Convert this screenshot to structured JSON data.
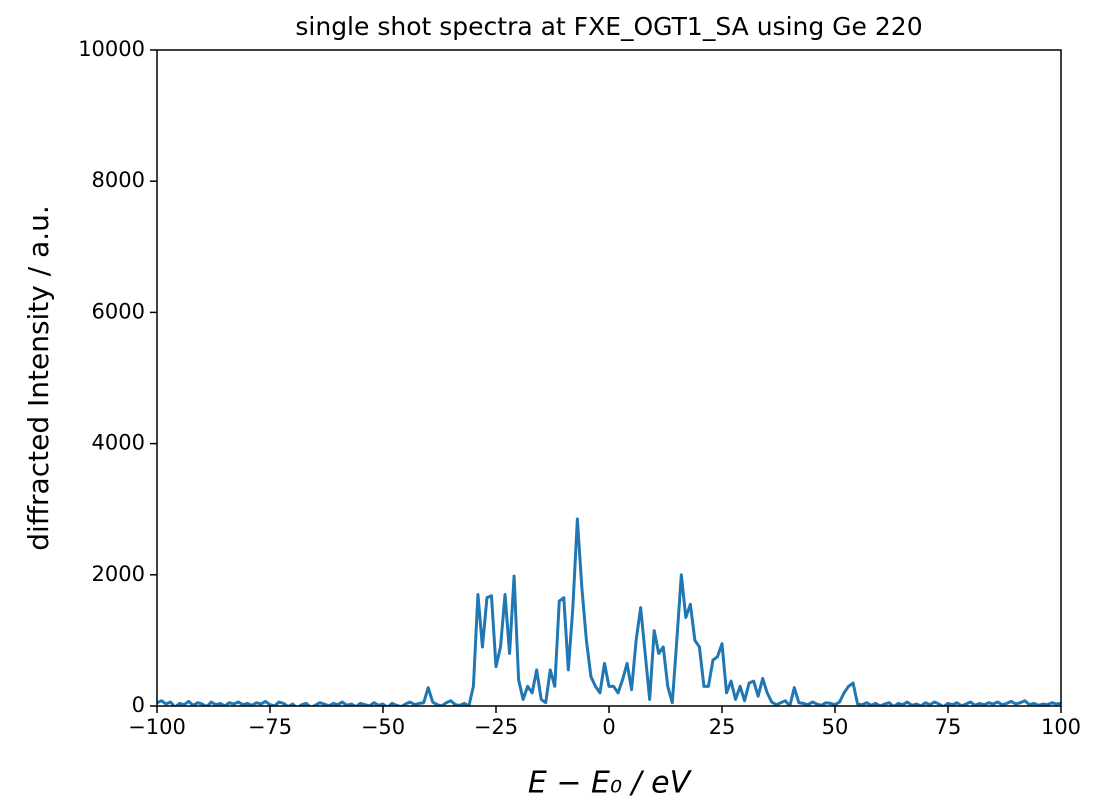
{
  "chart_data": {
    "type": "line",
    "title": "single shot spectra at FXE_OGT1_SA using Ge 220",
    "xlabel": "E − E₀ / eV",
    "ylabel": "diffracted Intensity / a.u.",
    "color": "#1f77b4",
    "x": [
      -100,
      -99,
      -98,
      -97,
      -96,
      -95,
      -94,
      -93,
      -92,
      -91,
      -90,
      -89,
      -88,
      -87,
      -86,
      -85,
      -84,
      -83,
      -82,
      -81,
      -80,
      -79,
      -78,
      -77,
      -76,
      -75,
      -74,
      -73,
      -72,
      -71,
      -70,
      -69,
      -68,
      -67,
      -66,
      -65,
      -64,
      -63,
      -62,
      -61,
      -60,
      -59,
      -58,
      -57,
      -56,
      -55,
      -54,
      -53,
      -52,
      -51,
      -50,
      -49,
      -48,
      -47,
      -46,
      -45,
      -44,
      -43,
      -42,
      -41,
      -40,
      -39,
      -38,
      -37,
      -36,
      -35,
      -34,
      -33,
      -32,
      -31,
      -30,
      -29,
      -28,
      -27,
      -26,
      -25,
      -24,
      -23,
      -22,
      -21,
      -20,
      -19,
      -18,
      -17,
      -16,
      -15,
      -14,
      -13,
      -12,
      -11,
      -10,
      -9,
      -8,
      -7,
      -6,
      -5,
      -4,
      -3,
      -2,
      -1,
      0,
      1,
      2,
      3,
      4,
      5,
      6,
      7,
      8,
      9,
      10,
      11,
      12,
      13,
      14,
      15,
      16,
      17,
      18,
      19,
      20,
      21,
      22,
      23,
      24,
      25,
      26,
      27,
      28,
      29,
      30,
      31,
      32,
      33,
      34,
      35,
      36,
      37,
      38,
      39,
      40,
      41,
      42,
      43,
      44,
      45,
      46,
      47,
      48,
      49,
      50,
      51,
      52,
      53,
      54,
      55,
      56,
      57,
      58,
      59,
      60,
      61,
      62,
      63,
      64,
      65,
      66,
      67,
      68,
      69,
      70,
      71,
      72,
      73,
      74,
      75,
      76,
      77,
      78,
      79,
      80,
      81,
      82,
      83,
      84,
      85,
      86,
      87,
      88,
      89,
      90,
      91,
      92,
      93,
      94,
      95,
      96,
      97,
      98,
      99,
      100
    ],
    "values": [
      50,
      80,
      30,
      60,
      -20,
      40,
      20,
      70,
      10,
      50,
      30,
      -10,
      60,
      20,
      40,
      0,
      50,
      30,
      60,
      20,
      40,
      10,
      50,
      30,
      70,
      20,
      0,
      60,
      40,
      -10,
      30,
      -30,
      20,
      40,
      -20,
      10,
      50,
      30,
      0,
      40,
      20,
      60,
      10,
      30,
      -10,
      40,
      20,
      0,
      50,
      10,
      30,
      -20,
      40,
      10,
      -10,
      30,
      60,
      20,
      40,
      50,
      280,
      60,
      20,
      0,
      50,
      80,
      20,
      10,
      40,
      0,
      300,
      1700,
      900,
      1650,
      1680,
      600,
      900,
      1700,
      800,
      1980,
      400,
      100,
      300,
      200,
      550,
      100,
      50,
      550,
      300,
      1600,
      1650,
      550,
      1500,
      2850,
      1800,
      1000,
      450,
      300,
      200,
      650,
      300,
      300,
      200,
      400,
      650,
      250,
      1000,
      1500,
      800,
      100,
      1150,
      800,
      900,
      300,
      50,
      1000,
      2000,
      1350,
      1550,
      1000,
      900,
      300,
      300,
      700,
      750,
      950,
      200,
      380,
      100,
      300,
      80,
      350,
      380,
      150,
      420,
      200,
      60,
      20,
      50,
      80,
      0,
      280,
      50,
      40,
      20,
      60,
      30,
      10,
      50,
      40,
      20,
      60,
      200,
      300,
      350,
      30,
      20,
      50,
      10,
      40,
      0,
      30,
      50,
      -10,
      40,
      20,
      60,
      10,
      30,
      0,
      50,
      20,
      60,
      30,
      -10,
      40,
      20,
      50,
      0,
      30,
      60,
      10,
      40,
      20,
      50,
      30,
      60,
      20,
      40,
      70,
      30,
      50,
      80,
      20,
      40,
      10,
      30,
      20,
      50,
      30,
      40
    ],
    "xlim": [
      -100,
      100
    ],
    "xticks": [
      {
        "value": -100,
        "label": "−100"
      },
      {
        "value": -75,
        "label": "−75"
      },
      {
        "value": -50,
        "label": "−50"
      },
      {
        "value": -25,
        "label": "−25"
      },
      0,
      25,
      50,
      75,
      100
    ],
    "ylim": [
      0,
      10000
    ],
    "yticks": [
      0,
      2000,
      4000,
      6000,
      8000,
      10000
    ],
    "grid": false
  }
}
